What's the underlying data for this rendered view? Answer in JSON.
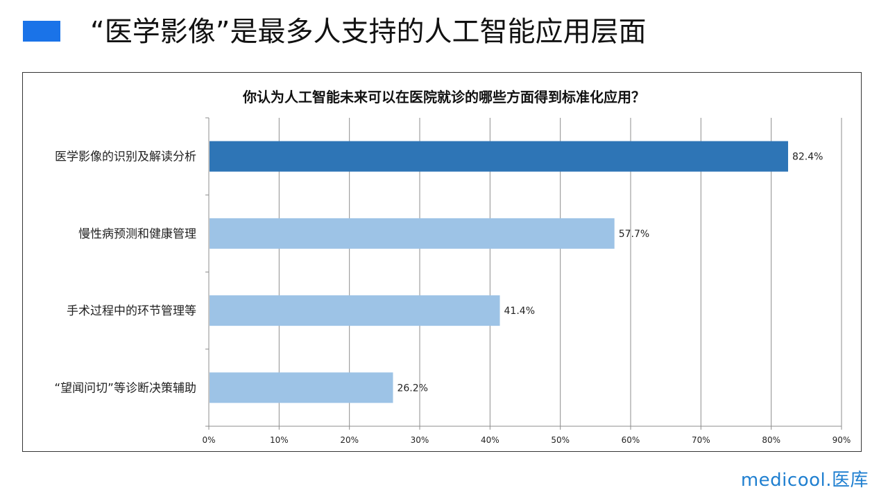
{
  "header": {
    "title": "“医学影像”是最多人支持的人工智能应用层面"
  },
  "brand": {
    "logo_text": "medicool.医库",
    "accent_color": "#1a73e8",
    "logo_color": "#1f7fd0"
  },
  "chart_data": {
    "type": "bar",
    "orientation": "horizontal",
    "title": "你认为人工智能未来可以在医院就诊的哪些方面得到标准化应用？",
    "categories": [
      "医学影像的识别及解读分析",
      "慢性病预测和健康管理",
      "手术过程中的环节管理等",
      "“望闻问切”等诊断决策辅助"
    ],
    "values": [
      82.4,
      57.7,
      41.4,
      26.2
    ],
    "value_labels": [
      "82.4%",
      "57.7%",
      "41.4%",
      "26.2%"
    ],
    "xlim": [
      0,
      90
    ],
    "xticks": [
      "0%",
      "10%",
      "20%",
      "30%",
      "40%",
      "50%",
      "60%",
      "70%",
      "80%",
      "90%"
    ],
    "grid": true,
    "colors": {
      "highlight": "#2e75b6",
      "default": "#9dc3e6"
    }
  }
}
